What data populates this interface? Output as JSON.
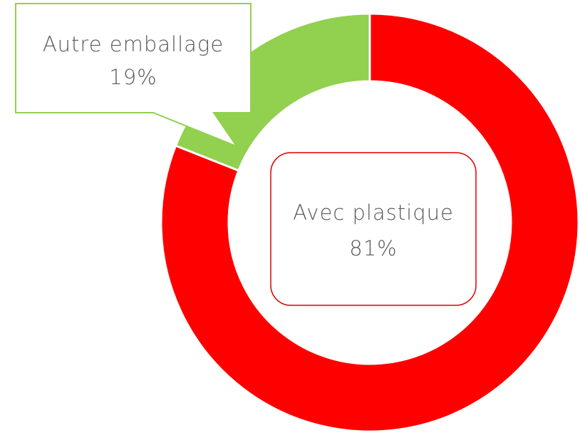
{
  "chart_data": {
    "type": "donut",
    "categories": [
      "Avec plastique",
      "Autre emballage"
    ],
    "values": [
      81,
      19
    ],
    "value_labels": [
      "81%",
      "19%"
    ],
    "colors": [
      "#ff0000",
      "#92d050"
    ]
  }
}
